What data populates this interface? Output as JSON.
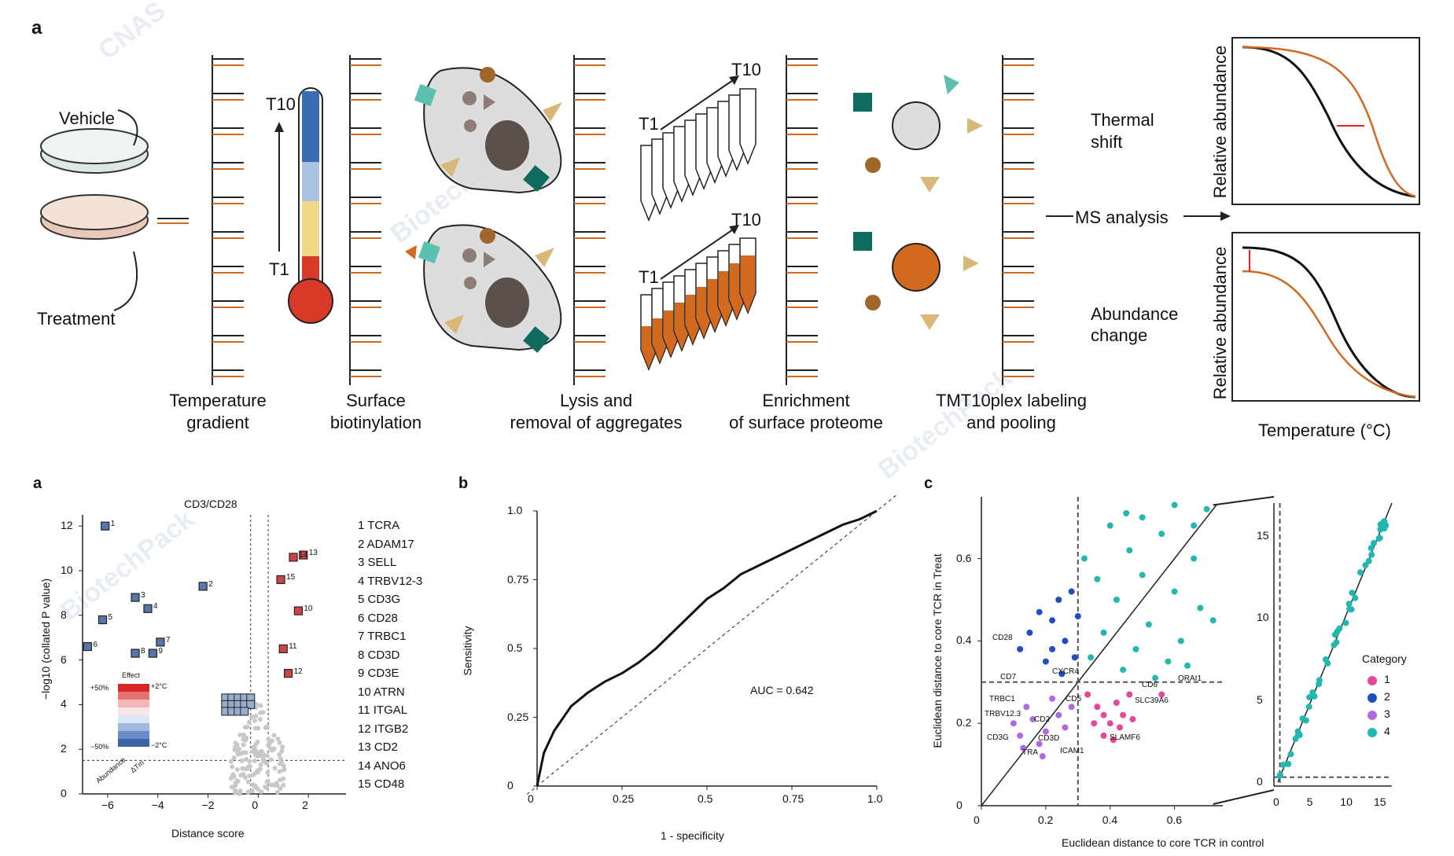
{
  "colors": {
    "orange": "#d2691e",
    "teal": "#4bb8a9",
    "darkteal": "#0f6b5e",
    "brown": "#a0662a",
    "tan": "#d8b878",
    "red": "#d62728",
    "gray": "#c8c8c8"
  },
  "workflow": {
    "panel_label": "a",
    "vehicle": "Vehicle",
    "treatment": "Treatment",
    "t10": "T10",
    "t1": "T1",
    "steps": [
      {
        "l1": "Temperature",
        "l2": "gradient"
      },
      {
        "l1": "Surface",
        "l2": "biotinylation"
      },
      {
        "l1": "Lysis and",
        "l2": "removal of aggregates"
      },
      {
        "l1": "Enrichment",
        "l2": "of surface proteome"
      },
      {
        "l1": "TMT10plex labeling",
        "l2": "and pooling"
      }
    ],
    "ms_analysis": "MS analysis",
    "thermal_l1": "Thermal",
    "thermal_l2": "shift",
    "abundance_l1": "Abundance",
    "abundance_l2": "change",
    "rel_abundance": "Relative abundance",
    "temperature_axis": "Temperature (°C)"
  },
  "volcano": {
    "panel_label": "a",
    "title": "CD3/CD28",
    "ylabel": "−log10 (collated P value)",
    "xlabel": "Distance score",
    "xticks": [
      "−6",
      "−4",
      "−2",
      "0",
      "2"
    ],
    "yticks": [
      "0",
      "2",
      "4",
      "6",
      "8",
      "10",
      "12"
    ],
    "effect_title": "Effect",
    "effect_top_left": "+50%",
    "effect_top_right": "+2°C",
    "effect_bot_left": "−50%",
    "effect_bot_right": "−2°C",
    "effect_axis_1": "Abundance",
    "effect_axis_2": "ΔTm",
    "gene_list": [
      "1 TCRA",
      "2 ADAM17",
      "3 SELL",
      "4 TRBV12-3",
      "5 CD3G",
      "6 CD28",
      "7 TRBC1",
      "8 CD3D",
      "9 CD3E",
      "10 ATRN",
      "11 ITGAL",
      "12 ITGB2",
      "13 CD2",
      "14 ANO6",
      "15 CD48"
    ]
  },
  "roc": {
    "panel_label": "b",
    "ylabel": "Sensitivity",
    "xlabel": "1 - specificity",
    "ticks": [
      "0",
      "0.25",
      "0.5",
      "0.75",
      "1.0"
    ],
    "auc": "AUC = 0.642"
  },
  "scatter": {
    "panel_label": "c",
    "ylabel": "Euclidean distance to core TCR in Treat",
    "xlabel": "Euclidean distance to core TCR in control",
    "xticks": [
      "0",
      "0.2",
      "0.4",
      "0.6"
    ],
    "yticks": [
      "0",
      "0.2",
      "0.4",
      "0.6"
    ],
    "inset_xticks": [
      "0",
      "5",
      "10",
      "15"
    ],
    "inset_yticks": [
      "0",
      "5",
      "10",
      "15"
    ],
    "legend_title": "Category",
    "categories": [
      {
        "name": "1",
        "color": "#e5479a"
      },
      {
        "name": "2",
        "color": "#1f4fbf"
      },
      {
        "name": "3",
        "color": "#b06ae0"
      },
      {
        "name": "4",
        "color": "#22b8b0"
      }
    ],
    "labels": [
      "CD28",
      "CD7",
      "CXCR4",
      "CD6",
      "ORAI1",
      "TRBC1",
      "CD5",
      "SLC39A6",
      "TRBV12.3",
      "CD2",
      "CD3G",
      "CD3D",
      "ICAM1",
      "SLAMF6",
      "TRA"
    ]
  },
  "chart_data": [
    {
      "type": "scatter",
      "title": "CD3/CD28",
      "xlabel": "Distance score",
      "ylabel": "−log10 (collated P value)",
      "xlim": [
        -7,
        3.5
      ],
      "ylim": [
        0,
        12.5
      ],
      "labeled_points": [
        {
          "id": "1",
          "x": -6.1,
          "y": 12.0
        },
        {
          "id": "2",
          "x": -2.2,
          "y": 9.3
        },
        {
          "id": "3",
          "x": -4.9,
          "y": 8.8
        },
        {
          "id": "4",
          "x": -4.4,
          "y": 8.3
        },
        {
          "id": "5",
          "x": -6.2,
          "y": 7.8
        },
        {
          "id": "6",
          "x": -6.8,
          "y": 6.6
        },
        {
          "id": "7",
          "x": -3.9,
          "y": 6.8
        },
        {
          "id": "8",
          "x": -4.9,
          "y": 6.3
        },
        {
          "id": "9",
          "x": -4.2,
          "y": 6.3
        },
        {
          "id": "10",
          "x": 1.6,
          "y": 8.2
        },
        {
          "id": "11",
          "x": 1.0,
          "y": 6.5
        },
        {
          "id": "12",
          "x": 1.2,
          "y": 5.4
        },
        {
          "id": "13",
          "x": 1.8,
          "y": 10.7
        },
        {
          "id": "14",
          "x": 1.4,
          "y": 10.6
        },
        {
          "id": "15",
          "x": 0.9,
          "y": 9.6
        }
      ]
    },
    {
      "type": "line",
      "title": "",
      "xlabel": "1 - specificity",
      "ylabel": "Sensitivity",
      "xlim": [
        0,
        1
      ],
      "ylim": [
        0,
        1
      ],
      "auc": 0.642,
      "x": [
        0,
        0.02,
        0.05,
        0.1,
        0.15,
        0.2,
        0.25,
        0.3,
        0.35,
        0.4,
        0.45,
        0.5,
        0.55,
        0.6,
        0.65,
        0.7,
        0.75,
        0.8,
        0.85,
        0.9,
        0.95,
        1.0
      ],
      "y": [
        0,
        0.12,
        0.2,
        0.29,
        0.34,
        0.38,
        0.41,
        0.45,
        0.5,
        0.56,
        0.62,
        0.68,
        0.72,
        0.77,
        0.8,
        0.83,
        0.86,
        0.89,
        0.92,
        0.95,
        0.97,
        1.0
      ]
    },
    {
      "type": "scatter",
      "title": "",
      "xlabel": "Euclidean distance to core TCR in control",
      "ylabel": "Euclidean distance to core TCR in Treat",
      "xlim": [
        0,
        0.75
      ],
      "ylim": [
        0,
        0.75
      ],
      "series": [
        {
          "name": "1",
          "points": [
            [
              0.33,
              0.27
            ],
            [
              0.36,
              0.24
            ],
            [
              0.38,
              0.22
            ],
            [
              0.4,
              0.2
            ],
            [
              0.42,
              0.25
            ],
            [
              0.44,
              0.22
            ],
            [
              0.46,
              0.27
            ],
            [
              0.38,
              0.17
            ],
            [
              0.41,
              0.16
            ],
            [
              0.43,
              0.19
            ],
            [
              0.47,
              0.21
            ],
            [
              0.35,
              0.2
            ],
            [
              0.56,
              0.27
            ]
          ]
        },
        {
          "name": "2",
          "points": [
            [
              0.12,
              0.38
            ],
            [
              0.15,
              0.42
            ],
            [
              0.18,
              0.47
            ],
            [
              0.2,
              0.35
            ],
            [
              0.22,
              0.45
            ],
            [
              0.24,
              0.5
            ],
            [
              0.26,
              0.4
            ],
            [
              0.28,
              0.52
            ],
            [
              0.3,
              0.46
            ],
            [
              0.25,
              0.32
            ],
            [
              0.22,
              0.38
            ],
            [
              0.29,
              0.36
            ]
          ]
        },
        {
          "name": "3",
          "points": [
            [
              0.1,
              0.2
            ],
            [
              0.12,
              0.17
            ],
            [
              0.14,
              0.24
            ],
            [
              0.16,
              0.21
            ],
            [
              0.18,
              0.15
            ],
            [
              0.2,
              0.18
            ],
            [
              0.22,
              0.26
            ],
            [
              0.24,
              0.22
            ],
            [
              0.26,
              0.19
            ],
            [
              0.28,
              0.24
            ],
            [
              0.13,
              0.14
            ],
            [
              0.19,
              0.12
            ]
          ]
        },
        {
          "name": "4",
          "points": [
            [
              0.32,
              0.6
            ],
            [
              0.36,
              0.55
            ],
            [
              0.4,
              0.68
            ],
            [
              0.42,
              0.5
            ],
            [
              0.46,
              0.62
            ],
            [
              0.5,
              0.56
            ],
            [
              0.52,
              0.44
            ],
            [
              0.56,
              0.66
            ],
            [
              0.6,
              0.52
            ],
            [
              0.62,
              0.4
            ],
            [
              0.66,
              0.6
            ],
            [
              0.7,
              0.72
            ],
            [
              0.68,
              0.48
            ],
            [
              0.58,
              0.35
            ],
            [
              0.48,
              0.38
            ],
            [
              0.44,
              0.33
            ],
            [
              0.54,
              0.31
            ],
            [
              0.64,
              0.34
            ],
            [
              0.38,
              0.42
            ],
            [
              0.34,
              0.36
            ],
            [
              0.72,
              0.45
            ],
            [
              0.5,
              0.7
            ],
            [
              0.6,
              0.73
            ],
            [
              0.45,
              0.71
            ],
            [
              0.66,
              0.68
            ]
          ]
        }
      ]
    }
  ]
}
